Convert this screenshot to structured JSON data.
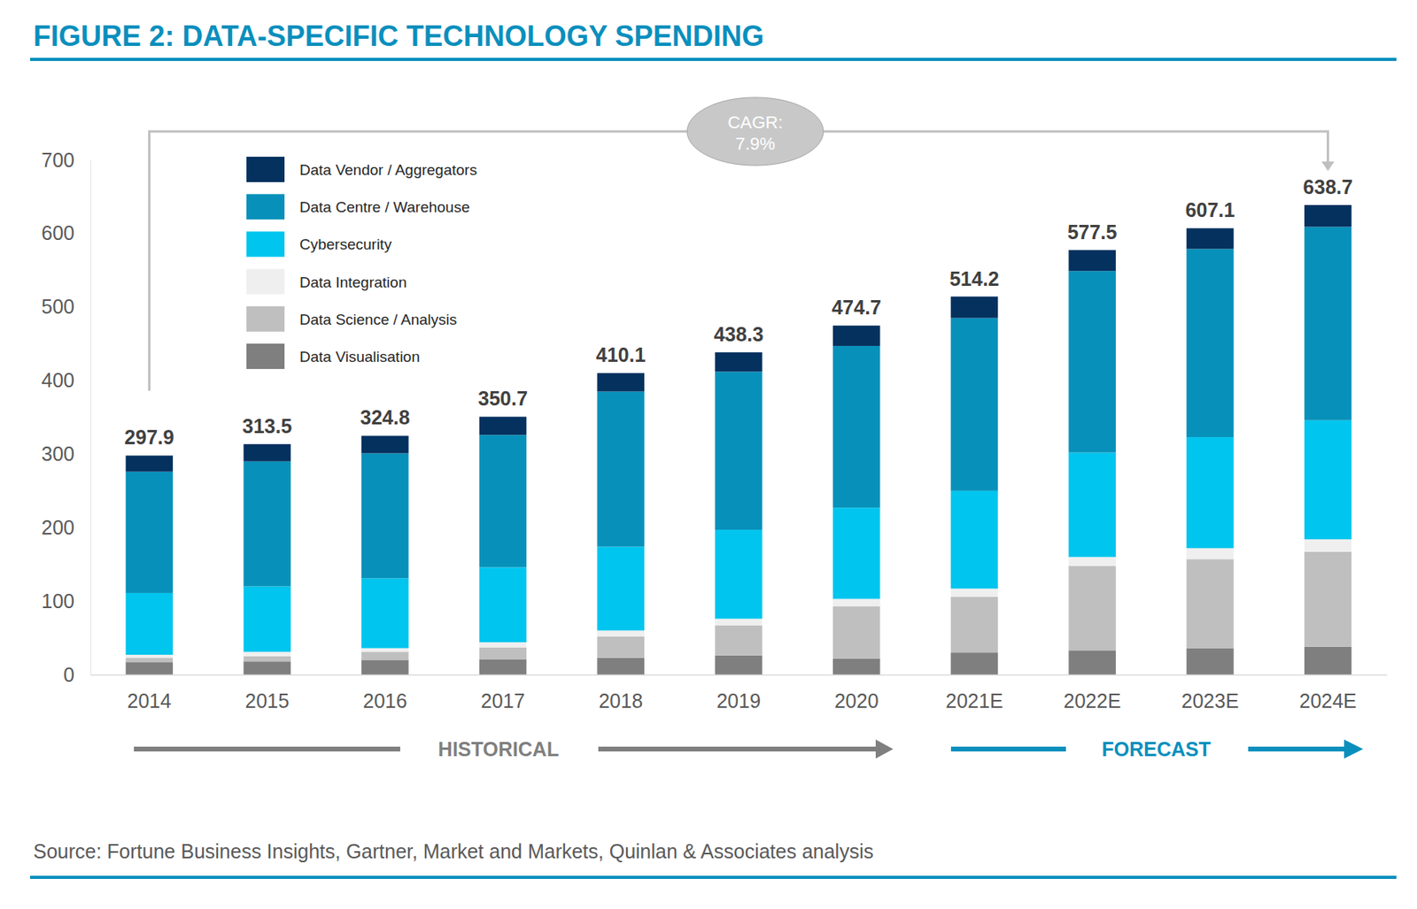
{
  "chart_data": {
    "type": "bar",
    "title": "FIGURE 2: DATA-SPECIFIC TECHNOLOGY SPENDING",
    "stacked": true,
    "legend": "upper left",
    "grid": false,
    "categories": [
      "2014",
      "2015",
      "2016",
      "2017",
      "2018",
      "2019",
      "2020",
      "2021E",
      "2022E",
      "2023E",
      "2024E"
    ],
    "series": [
      {
        "name": "Data Visualisation",
        "color": "#7f7f7f",
        "values": [
          17,
          18,
          20,
          21,
          23,
          26,
          22,
          30,
          33,
          36,
          38
        ]
      },
      {
        "name": "Data Science / Analysis",
        "color": "#bfbfbf",
        "values": [
          6,
          7,
          11,
          16,
          29,
          41,
          71,
          76,
          115,
          121,
          129
        ]
      },
      {
        "name": "Data Integration",
        "color": "#efefef",
        "values": [
          4,
          6,
          5,
          7,
          8,
          9,
          10,
          11,
          12,
          15,
          17
        ]
      },
      {
        "name": "Cybersecurity",
        "color": "#00c5ee",
        "values": [
          84,
          89,
          95,
          102,
          114,
          121,
          124,
          133,
          142,
          151,
          162
        ]
      },
      {
        "name": "Data Centre / Warehouse",
        "color": "#0791ba",
        "values": [
          165,
          170,
          170,
          180,
          211,
          215,
          220,
          235,
          247,
          256,
          263
        ]
      },
      {
        "name": "Data Vendor / Aggregators",
        "color": "#05315f",
        "values": [
          21.9,
          23.5,
          23.8,
          24.7,
          25.1,
          26.3,
          27.7,
          29.2,
          28.5,
          28.1,
          29.7
        ]
      }
    ],
    "totals": [
      297.9,
      313.5,
      324.8,
      350.7,
      410.1,
      438.3,
      474.7,
      514.2,
      577.5,
      607.1,
      638.7
    ],
    "ylim": [
      0,
      700
    ],
    "yticks": [
      0,
      100,
      200,
      300,
      400,
      500,
      600,
      700
    ],
    "annotations": [
      "CAGR:",
      "7.9%",
      "HISTORICAL",
      "FORECAST"
    ],
    "source": "Source: Fortune Business Insights, Gartner, Market and Markets, Quinlan & Associates analysis"
  }
}
